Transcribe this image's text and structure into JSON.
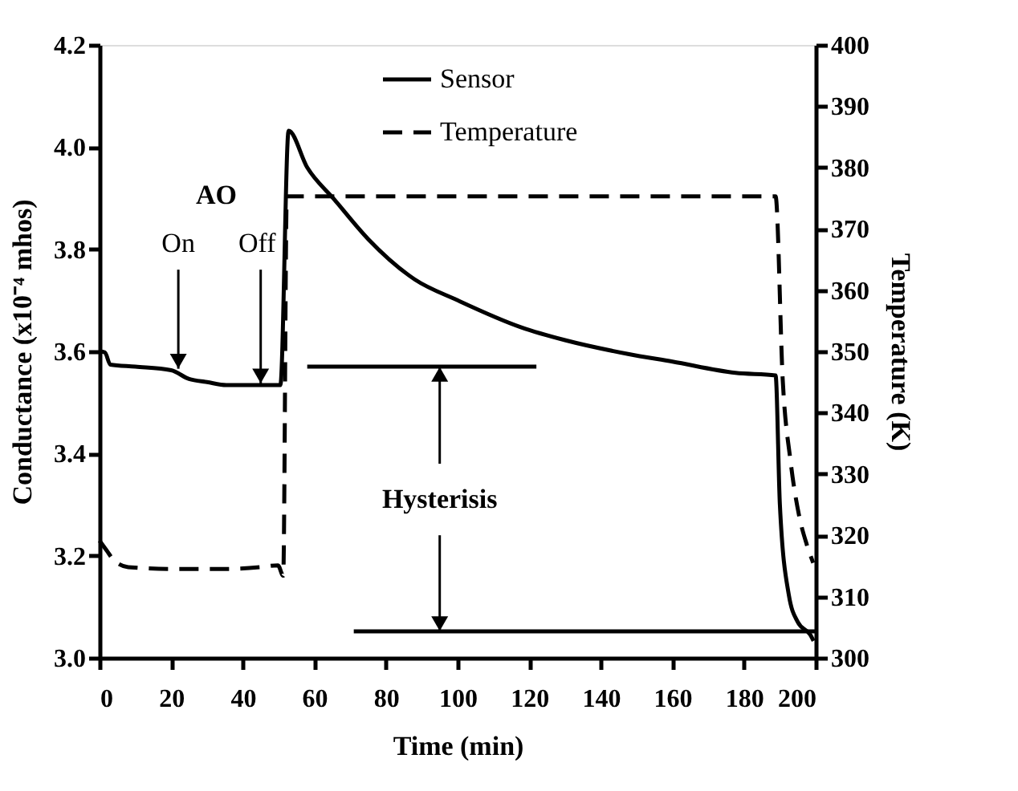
{
  "chart_data": {
    "type": "line",
    "xlabel": "Time (min)",
    "ylabel": "Conductance (x10⁻⁴ mhos)",
    "y2label": "Temperature (K)",
    "xlim": [
      0,
      200
    ],
    "xticks": [
      0,
      20,
      40,
      60,
      80,
      100,
      120,
      140,
      160,
      180,
      200
    ],
    "ylim": [
      3.0,
      4.2
    ],
    "yticks": [
      {
        "value": 3.0,
        "label": "3.0"
      },
      3.2,
      3.4,
      3.6,
      3.8,
      {
        "value": 4.0,
        "label": "4.0"
      },
      4.2
    ],
    "y2lim": [
      300,
      400
    ],
    "y2ticks": [
      300,
      310,
      320,
      330,
      340,
      350,
      360,
      370,
      380,
      390,
      400
    ],
    "grid": false,
    "legend": "top",
    "marker": "none",
    "series": [
      {
        "name": "Sensor",
        "color": "#000000",
        "line_style": "solid",
        "x": [
          0,
          1.5,
          3,
          10,
          20,
          25,
          30,
          35.4,
          45,
          50.5,
          52.8,
          58,
          65.5,
          75,
          88,
          100,
          117.8,
          130,
          147.6,
          160,
          177.6,
          188.8,
          190,
          192.5,
          195,
          198.5,
          199.4
        ],
        "values": [
          3.6,
          3.598,
          3.574,
          3.57,
          3.563,
          3.546,
          3.54,
          3.534,
          3.534,
          3.534,
          4.032,
          3.96,
          3.898,
          3.82,
          3.741,
          3.7,
          3.647,
          3.622,
          3.595,
          3.58,
          3.558,
          3.553,
          3.3,
          3.123,
          3.07,
          3.045,
          3.033
        ]
      },
      {
        "name": "Temperature",
        "color": "#000000",
        "line_style": "dashed",
        "axis": "y2",
        "x": [
          0,
          2,
          3.9,
          8,
          20,
          35,
          45,
          49.8,
          51.3,
          52.3,
          60,
          100,
          150,
          188.8,
          190.8,
          193,
          195.3,
          197.5,
          199.3
        ],
        "values": [
          319.1,
          317.5,
          316,
          314.8,
          314.5,
          314.5,
          314.8,
          315.1,
          313.4,
          375.3,
          375.3,
          375.3,
          375.3,
          375.3,
          345.3,
          332,
          323.4,
          318.5,
          315.5
        ]
      },
      {
        "color": "#000000",
        "line_style": "solid",
        "x": [
          58,
          122
        ],
        "values": [
          3.57,
          3.57
        ]
      },
      {
        "color": "#000000",
        "line_style": "solid",
        "x": [
          71,
          200
        ],
        "values": [
          3.052,
          3.052
        ]
      }
    ],
    "annotations": [
      "AO",
      {
        "text": "On",
        "x": 22,
        "y": 3.563
      },
      {
        "text": "Off",
        "x": 45,
        "y": 3.534
      },
      {
        "text": "Hysterisis",
        "x": 95,
        "y": 3.57
      }
    ]
  }
}
